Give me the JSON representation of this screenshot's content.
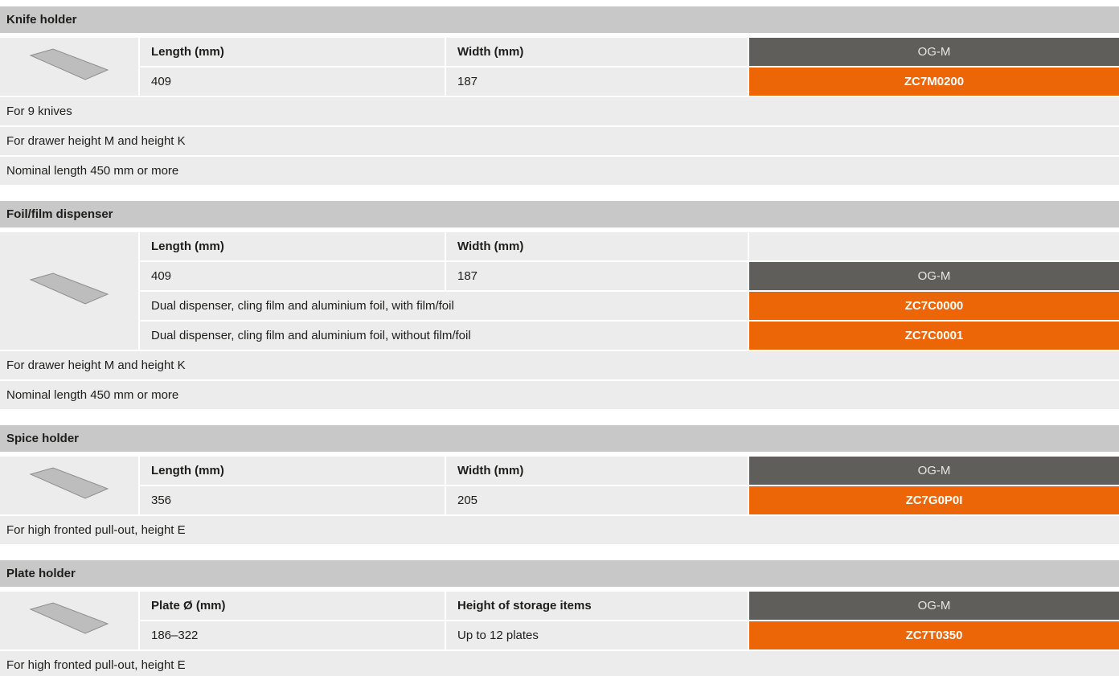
{
  "sections": [
    {
      "title": "Knife holder",
      "rows": [
        {
          "cells": [
            "Length (mm)",
            "Width (mm)"
          ],
          "variant": "OG-M"
        },
        {
          "cells": [
            "409",
            "187"
          ],
          "article": "ZC7M0200"
        }
      ],
      "notes": [
        "For 9 knives",
        "For drawer height M and height K",
        "Nominal length 450 mm or more"
      ]
    },
    {
      "title": "Foil/film dispenser",
      "rows": [
        {
          "cells": [
            "Length (mm)",
            "Width (mm)"
          ]
        },
        {
          "cells": [
            "409",
            "187"
          ],
          "variant": "OG-M"
        },
        {
          "cells": [
            "Dual dispenser, cling film and aluminium foil, with film/foil"
          ],
          "article": "ZC7C0000"
        },
        {
          "cells": [
            "Dual dispenser, cling film and aluminium foil, without film/foil"
          ],
          "article": "ZC7C0001"
        }
      ],
      "notes": [
        "For drawer height M and height K",
        "Nominal length 450 mm or more"
      ]
    },
    {
      "title": "Spice holder",
      "rows": [
        {
          "cells": [
            "Length (mm)",
            "Width (mm)"
          ],
          "variant": "OG-M"
        },
        {
          "cells": [
            "356",
            "205"
          ],
          "article": "ZC7G0P0I"
        }
      ],
      "notes": [
        "For high fronted pull-out, height E"
      ]
    },
    {
      "title": "Plate holder",
      "rows": [
        {
          "cells": [
            "Plate Ø (mm)",
            "Height of storage items"
          ],
          "variant": "OG-M"
        },
        {
          "cells": [
            "186–322",
            "Up to 12 plates"
          ],
          "article": "ZC7T0350"
        }
      ],
      "notes": [
        "For high fronted pull-out, height E"
      ]
    }
  ]
}
